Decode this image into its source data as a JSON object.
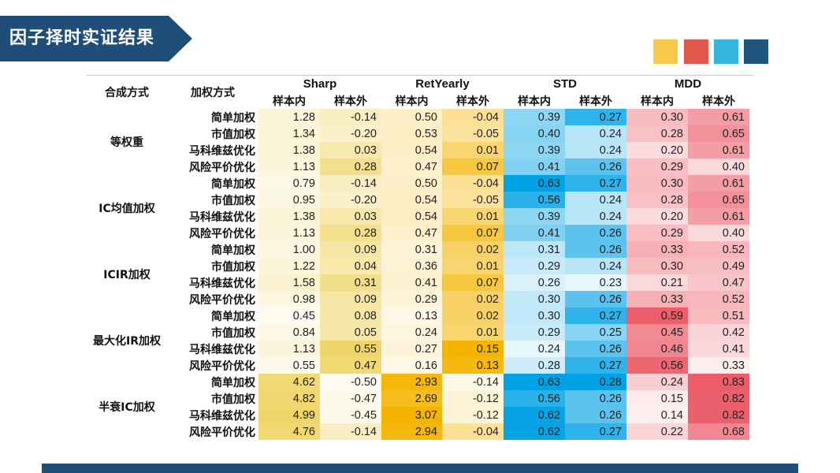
{
  "title": "因子择时实证结果",
  "colors": {
    "banner": "#1f4e79",
    "squares": [
      "#f7c948",
      "#e2574c",
      "#33b5dd",
      "#1f5680"
    ],
    "footer": "#1f4e79"
  },
  "table": {
    "col_headers": {
      "group": "合成方式",
      "weight": "加权方式",
      "metrics": [
        "Sharp",
        "RetYearly",
        "STD",
        "MDD"
      ],
      "sub": [
        "样本内",
        "样本外"
      ]
    },
    "groups": [
      {
        "name": "等权重",
        "rows": [
          {
            "method": "简单加权",
            "values": [
              "1.28",
              "-0.14",
              "0.50",
              "-0.04",
              "0.39",
              "0.27",
              "0.30",
              "0.61"
            ]
          },
          {
            "method": "市值加权",
            "values": [
              "1.34",
              "-0.20",
              "0.53",
              "-0.05",
              "0.40",
              "0.24",
              "0.28",
              "0.65"
            ]
          },
          {
            "method": "马科维兹优化",
            "values": [
              "1.38",
              "0.03",
              "0.54",
              "0.01",
              "0.39",
              "0.24",
              "0.20",
              "0.61"
            ]
          },
          {
            "method": "风险平价优化",
            "values": [
              "1.13",
              "0.28",
              "0.47",
              "0.07",
              "0.41",
              "0.26",
              "0.29",
              "0.40"
            ]
          }
        ]
      },
      {
        "name": "IC均值加权",
        "rows": [
          {
            "method": "简单加权",
            "values": [
              "0.79",
              "-0.14",
              "0.50",
              "-0.04",
              "0.63",
              "0.27",
              "0.30",
              "0.61"
            ]
          },
          {
            "method": "市值加权",
            "values": [
              "0.95",
              "-0.20",
              "0.54",
              "-0.05",
              "0.56",
              "0.24",
              "0.28",
              "0.65"
            ]
          },
          {
            "method": "马科维兹优化",
            "values": [
              "1.38",
              "0.03",
              "0.54",
              "0.01",
              "0.39",
              "0.24",
              "0.20",
              "0.61"
            ]
          },
          {
            "method": "风险平价优化",
            "values": [
              "1.13",
              "0.28",
              "0.47",
              "0.07",
              "0.41",
              "0.26",
              "0.29",
              "0.40"
            ]
          }
        ]
      },
      {
        "name": "ICIR加权",
        "rows": [
          {
            "method": "简单加权",
            "values": [
              "1.00",
              "0.09",
              "0.31",
              "0.02",
              "0.31",
              "0.26",
              "0.33",
              "0.52"
            ]
          },
          {
            "method": "市值加权",
            "values": [
              "1.22",
              "0.04",
              "0.36",
              "0.01",
              "0.29",
              "0.24",
              "0.30",
              "0.49"
            ]
          },
          {
            "method": "马科维兹优化",
            "values": [
              "1.58",
              "0.31",
              "0.41",
              "0.07",
              "0.26",
              "0.23",
              "0.21",
              "0.47"
            ]
          },
          {
            "method": "风险平价优化",
            "values": [
              "0.98",
              "0.09",
              "0.29",
              "0.02",
              "0.30",
              "0.26",
              "0.33",
              "0.52"
            ]
          }
        ]
      },
      {
        "name": "最大化IR加权",
        "rows": [
          {
            "method": "简单加权",
            "values": [
              "0.45",
              "0.08",
              "0.13",
              "0.02",
              "0.30",
              "0.27",
              "0.59",
              "0.51"
            ]
          },
          {
            "method": "市值加权",
            "values": [
              "0.84",
              "0.05",
              "0.24",
              "0.01",
              "0.29",
              "0.25",
              "0.45",
              "0.42"
            ]
          },
          {
            "method": "马科维兹优化",
            "values": [
              "1.13",
              "0.55",
              "0.27",
              "0.15",
              "0.24",
              "0.26",
              "0.46",
              "0.41"
            ]
          },
          {
            "method": "风险平价优化",
            "values": [
              "0.55",
              "0.47",
              "0.16",
              "0.13",
              "0.28",
              "0.27",
              "0.56",
              "0.33"
            ]
          }
        ]
      },
      {
        "name": "半衰IC加权",
        "rows": [
          {
            "method": "简单加权",
            "values": [
              "4.62",
              "-0.50",
              "2.93",
              "-0.14",
              "0.63",
              "0.28",
              "0.24",
              "0.83"
            ]
          },
          {
            "method": "市值加权",
            "values": [
              "4.82",
              "-0.47",
              "2.69",
              "-0.12",
              "0.56",
              "0.26",
              "0.15",
              "0.82"
            ]
          },
          {
            "method": "马科维兹优化",
            "values": [
              "4.99",
              "-0.45",
              "3.07",
              "-0.12",
              "0.62",
              "0.26",
              "0.14",
              "0.82"
            ]
          },
          {
            "method": "风险平价优化",
            "values": [
              "4.76",
              "-0.14",
              "2.94",
              "-0.04",
              "0.62",
              "0.27",
              "0.22",
              "0.68"
            ]
          }
        ]
      }
    ]
  }
}
